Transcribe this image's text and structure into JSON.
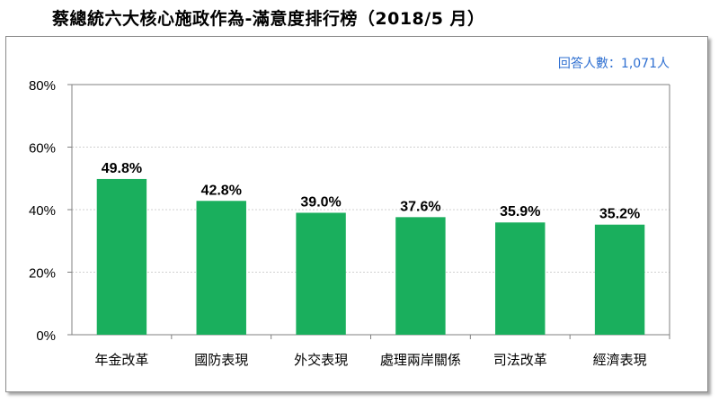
{
  "chart_data": {
    "type": "bar",
    "title": "蔡總統六大核心施政作為-滿意度排行榜（2018/5 月）",
    "note": "回答人數：1,071人",
    "categories": [
      "年金改革",
      "國防表現",
      "外交表現",
      "處理兩岸關係",
      "司法改革",
      "經濟表現"
    ],
    "values": [
      49.8,
      42.8,
      39.0,
      37.6,
      35.9,
      35.2
    ],
    "value_labels": [
      "49.8%",
      "42.8%",
      "39.0%",
      "37.6%",
      "35.9%",
      "35.2%"
    ],
    "y_tick_labels": [
      "0%",
      "20%",
      "40%",
      "60%",
      "80%"
    ],
    "y_ticks": [
      0,
      20,
      40,
      60,
      80
    ],
    "ylim": [
      0,
      80
    ],
    "grid": true,
    "bar_color": "#1aaf5d",
    "note_color": "#2e6fd1"
  }
}
